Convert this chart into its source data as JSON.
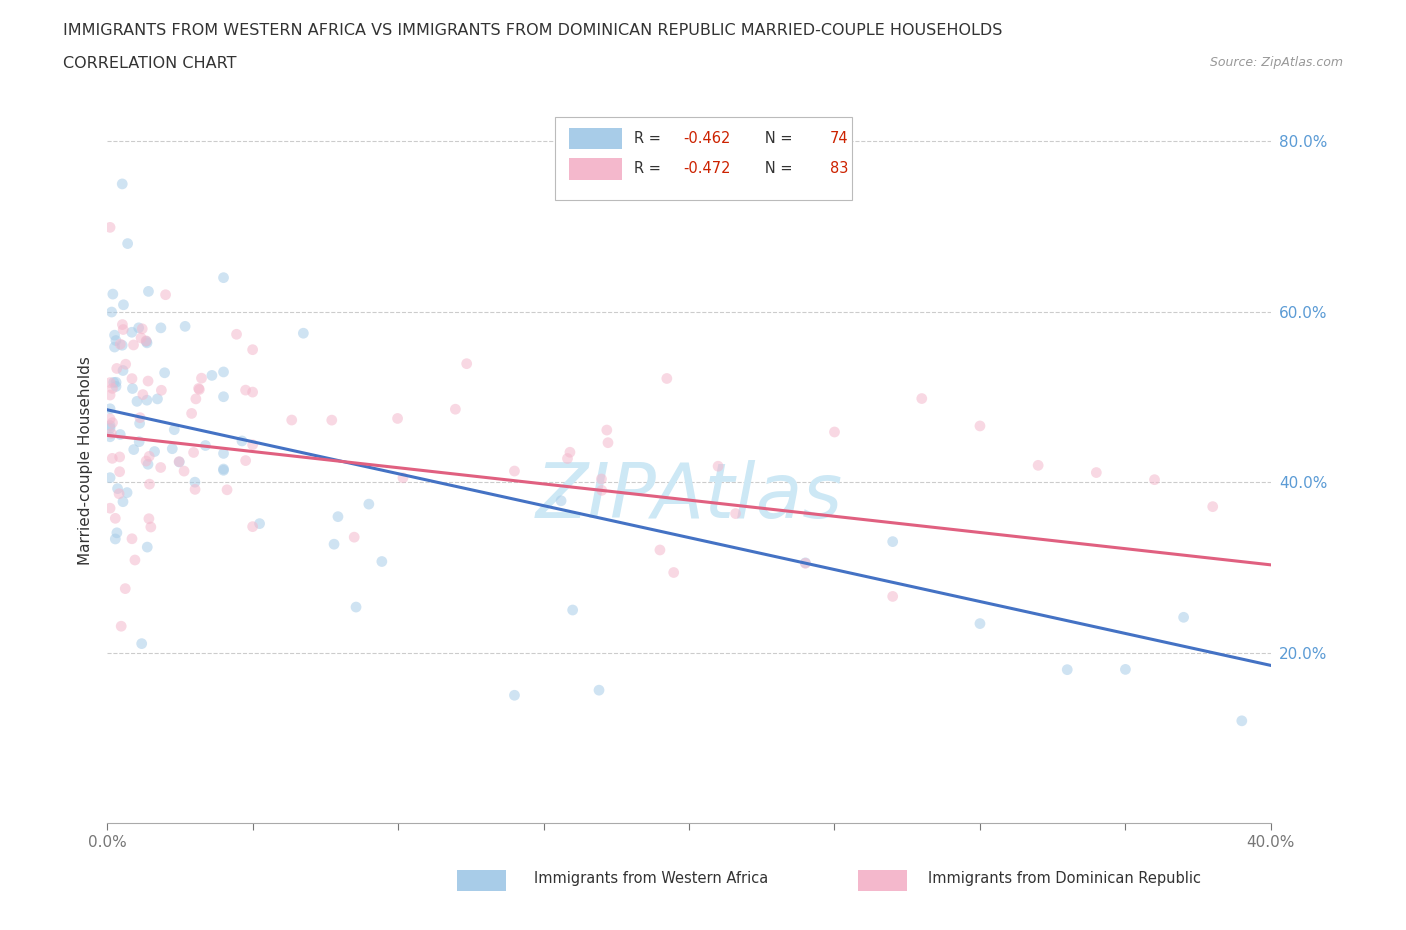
{
  "title_line1": "IMMIGRANTS FROM WESTERN AFRICA VS IMMIGRANTS FROM DOMINICAN REPUBLIC MARRIED-COUPLE HOUSEHOLDS",
  "title_line2": "CORRELATION CHART",
  "source_text": "Source: ZipAtlas.com",
  "ylabel": "Married-couple Households",
  "series": [
    {
      "label": "Immigrants from Western Africa",
      "R": -0.462,
      "N": 74,
      "color": "#a8cce8",
      "line_color": "#4472c4",
      "intercept": 0.485,
      "slope": -0.75
    },
    {
      "label": "Immigrants from Dominican Republic",
      "R": -0.472,
      "N": 83,
      "color": "#f4b8cc",
      "line_color": "#e06080",
      "intercept": 0.455,
      "slope": -0.38
    }
  ],
  "xlim": [
    0.0,
    0.4
  ],
  "ylim": [
    0.0,
    0.85
  ],
  "ytick_positions": [
    0.2,
    0.4,
    0.6,
    0.8
  ],
  "ytick_labels": [
    "20.0%",
    "40.0%",
    "60.0%",
    "80.0%"
  ],
  "grid_color": "#cccccc",
  "background_color": "#ffffff",
  "scatter_size": 60,
  "scatter_alpha": 0.55,
  "title_fontsize": 11.5,
  "tick_label_color_x": "#777777",
  "tick_label_color_y": "#5b9bd5",
  "watermark_color": "#cde8f5",
  "watermark_fontsize": 55
}
